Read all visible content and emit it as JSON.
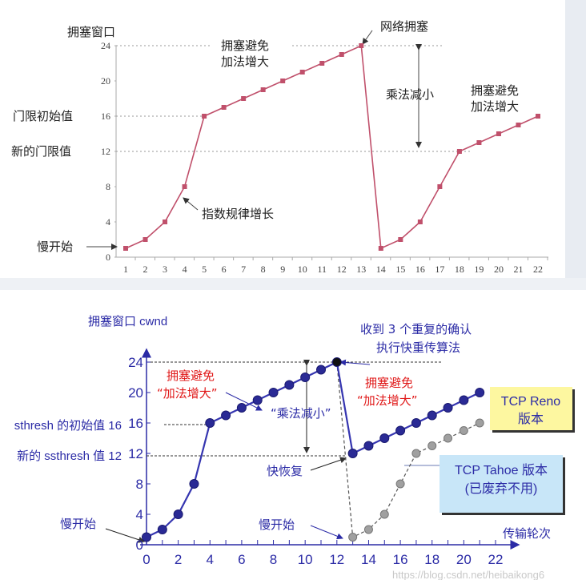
{
  "chart_data": [
    {
      "type": "line",
      "title": "",
      "ylabel": "拥塞窗口",
      "xlabel": "",
      "x": [
        1,
        2,
        3,
        4,
        5,
        6,
        7,
        8,
        9,
        10,
        11,
        12,
        13,
        14,
        15,
        16,
        17,
        18,
        19,
        20,
        21,
        22
      ],
      "series": [
        {
          "values": [
            1,
            2,
            4,
            8,
            16,
            17,
            18,
            19,
            20,
            21,
            22,
            23,
            24,
            1,
            2,
            4,
            8,
            12,
            13,
            14,
            15,
            16
          ],
          "color": "#c0506b"
        }
      ],
      "yticks": [
        "0",
        "4",
        "8",
        "12",
        "16",
        "20",
        "24"
      ],
      "xticks": [
        "1",
        "2",
        "3",
        "4",
        "5",
        "6",
        "7",
        "8",
        "9",
        "10",
        "11",
        "12",
        "13",
        "14",
        "15",
        "16",
        "17",
        "18",
        "19",
        "20",
        "21",
        "22"
      ],
      "ylim": [
        0,
        24
      ],
      "xlim": [
        1,
        22
      ],
      "grid": false,
      "reference_lines": [
        24,
        16,
        12
      ],
      "annotations": {
        "network_congestion": "网络拥塞",
        "ca1_line1": "拥塞避免",
        "ca1_line2": "加法增大",
        "mult_decrease": "乘法减小",
        "ca2_line1": "拥塞避免",
        "ca2_line2": "加法增大",
        "init_threshold": "门限初始值",
        "new_threshold": "新的门限值",
        "exp_growth": "指数规律增长",
        "slow_start": "慢开始"
      }
    },
    {
      "type": "line",
      "title": "",
      "ylabel": "拥塞窗口 cwnd",
      "xlabel": "传输轮次",
      "series": [
        {
          "name": "TCP Reno 版本",
          "x": [
            0,
            1,
            2,
            3,
            4,
            5,
            6,
            7,
            8,
            9,
            10,
            11,
            12,
            13,
            14,
            15,
            16,
            17,
            18,
            19,
            20,
            21
          ],
          "values": [
            1,
            2,
            4,
            8,
            16,
            17,
            18,
            19,
            20,
            21,
            22,
            23,
            24,
            12,
            13,
            14,
            15,
            16,
            17,
            18,
            19,
            20
          ],
          "color": "#3535b0"
        },
        {
          "name": "TCP Tahoe 版本",
          "x": [
            12,
            13,
            14,
            15,
            16,
            17,
            18,
            19,
            20,
            21
          ],
          "values": [
            24,
            1,
            2,
            4,
            8,
            12,
            13,
            14,
            15,
            16
          ],
          "color": "#999999"
        }
      ],
      "yticks": [
        "0",
        "4",
        "8",
        "12",
        "16",
        "20",
        "24"
      ],
      "xticks": [
        "0",
        "2",
        "4",
        "6",
        "8",
        "10",
        "12",
        "14",
        "16",
        "18",
        "20",
        "22"
      ],
      "ylim": [
        0,
        24
      ],
      "xlim": [
        0,
        22
      ],
      "grid": false,
      "reference_lines": [
        24,
        16,
        12
      ],
      "annotations": {
        "dup_ack_line1": "收到 3 个重复的确认",
        "dup_ack_line2": "执行快重传算法",
        "ca1_line1": "拥塞避免",
        "ca1_line2": "“加法增大”",
        "ca2_line1": "拥塞避免",
        "ca2_line2": "“加法增大”",
        "mult_decrease": "“乘法减小”",
        "init_ssthresh": "sthresh 的初始值 16",
        "new_ssthresh": "新的 ssthresh 值 12",
        "fast_recovery": "快恢复",
        "slow_start_1": "慢开始",
        "slow_start_2": "慢开始",
        "reno_line1": "TCP Reno",
        "reno_line2": "版本",
        "tahoe_line1": "TCP Tahoe 版本",
        "tahoe_line2": "(已废弃不用)"
      }
    }
  ],
  "watermark": "https://blog.csdn.net/heibaikong6"
}
